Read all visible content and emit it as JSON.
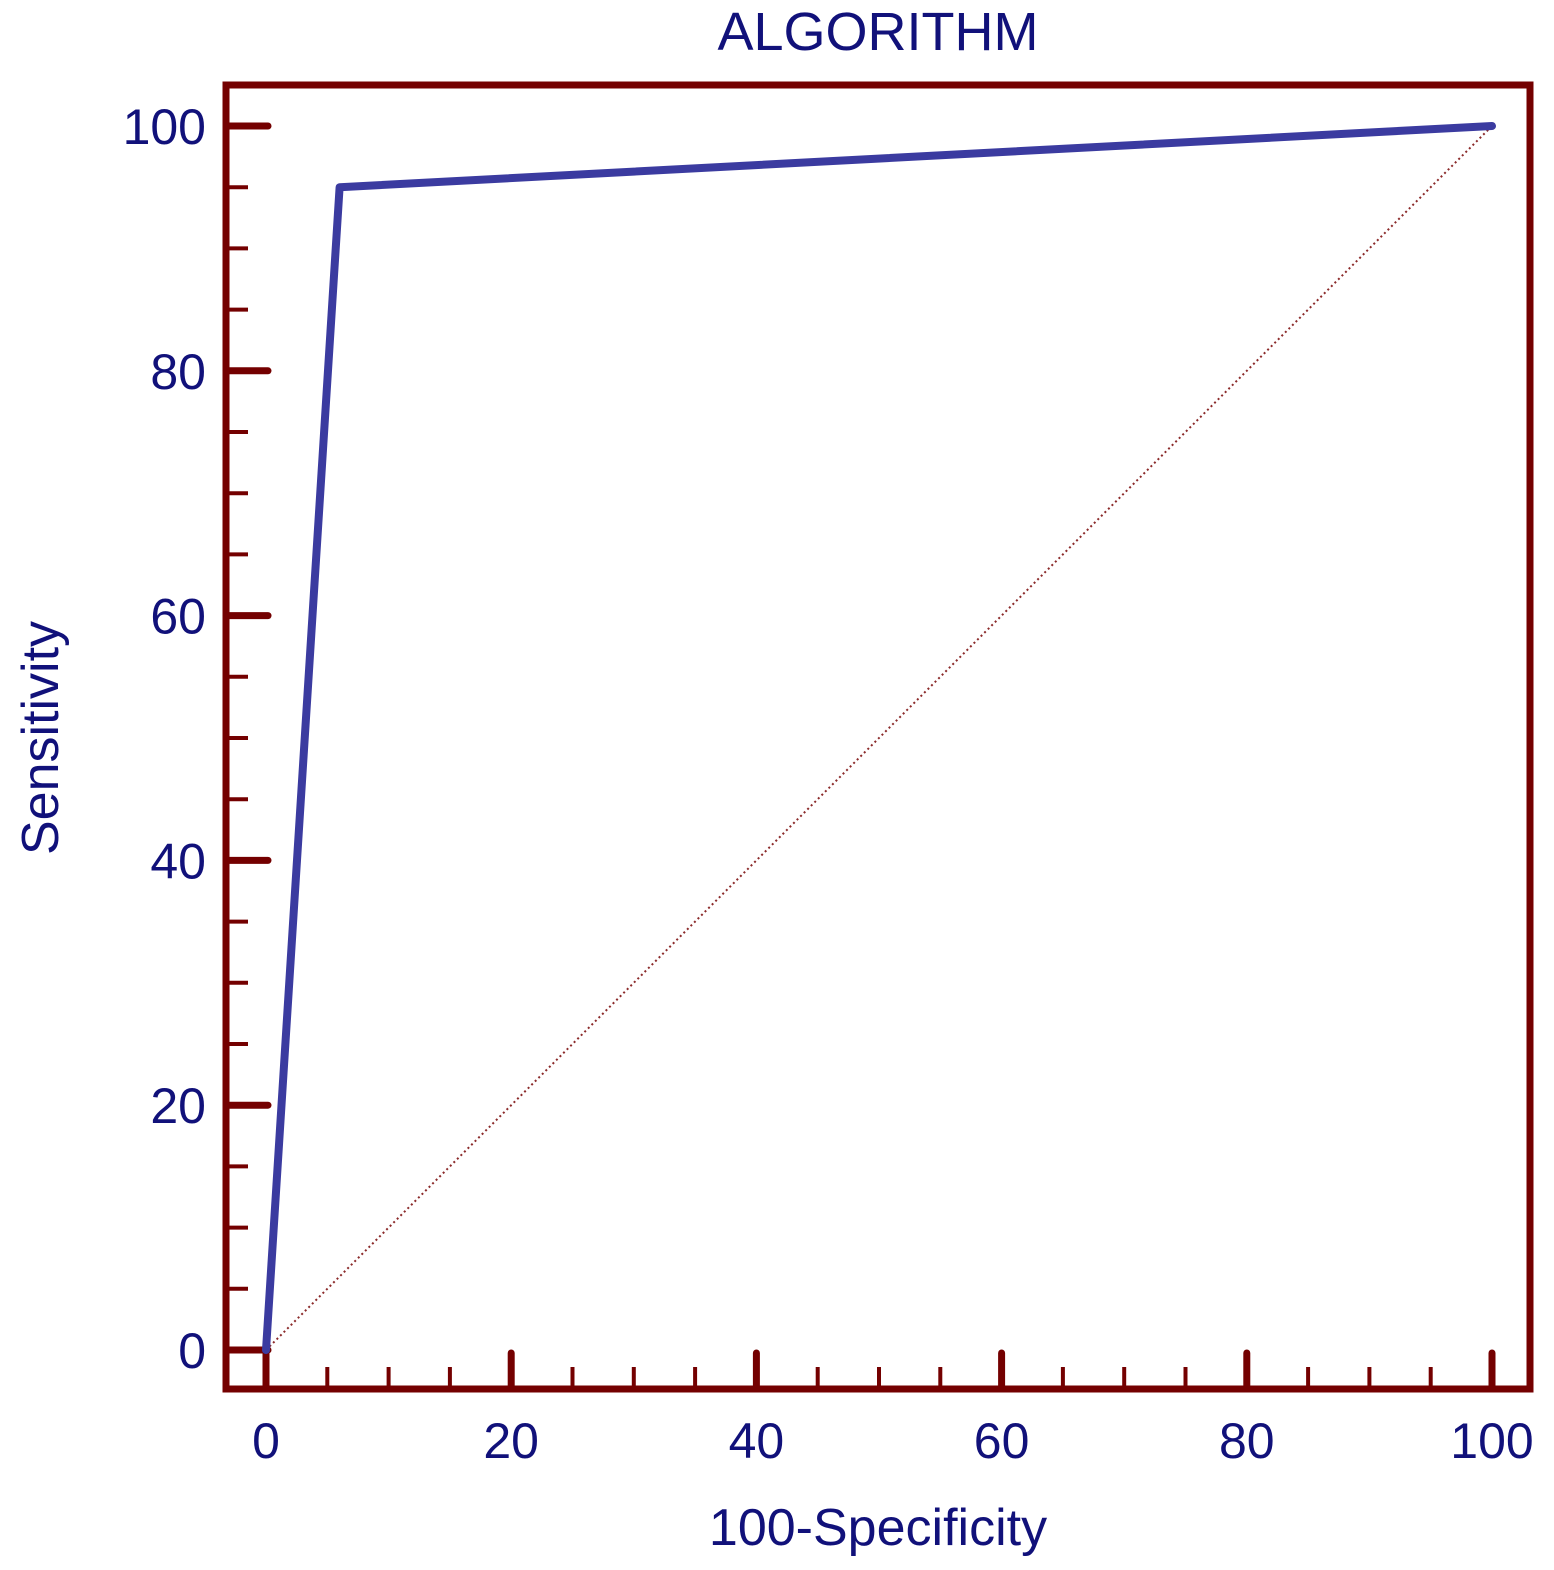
{
  "chart_data": {
    "type": "line",
    "title": "ALGORITHM",
    "xlabel": "100-Specificity",
    "ylabel": "Sensitivity",
    "xlim": [
      0,
      100
    ],
    "ylim": [
      0,
      100
    ],
    "x_ticks": [
      0,
      20,
      40,
      60,
      80,
      100
    ],
    "y_ticks": [
      0,
      20,
      40,
      60,
      80,
      100
    ],
    "x_tick_labels": [
      "0",
      "20",
      "40",
      "60",
      "80",
      "100"
    ],
    "y_tick_labels": [
      "0",
      "20",
      "40",
      "60",
      "80",
      "100"
    ],
    "x_minor_step": 5,
    "y_minor_step": 5,
    "grid": false,
    "series": [
      {
        "role": "roc-curve",
        "style": "solid",
        "color": "#3b3ba0",
        "x": [
          0,
          6,
          100
        ],
        "y": [
          0,
          95,
          100
        ]
      },
      {
        "role": "reference-diagonal",
        "style": "dotted",
        "color": "#8b2a2a",
        "x": [
          0,
          100
        ],
        "y": [
          0,
          100
        ]
      }
    ],
    "colors": {
      "frame": "#740000",
      "text": "#11117a"
    }
  }
}
